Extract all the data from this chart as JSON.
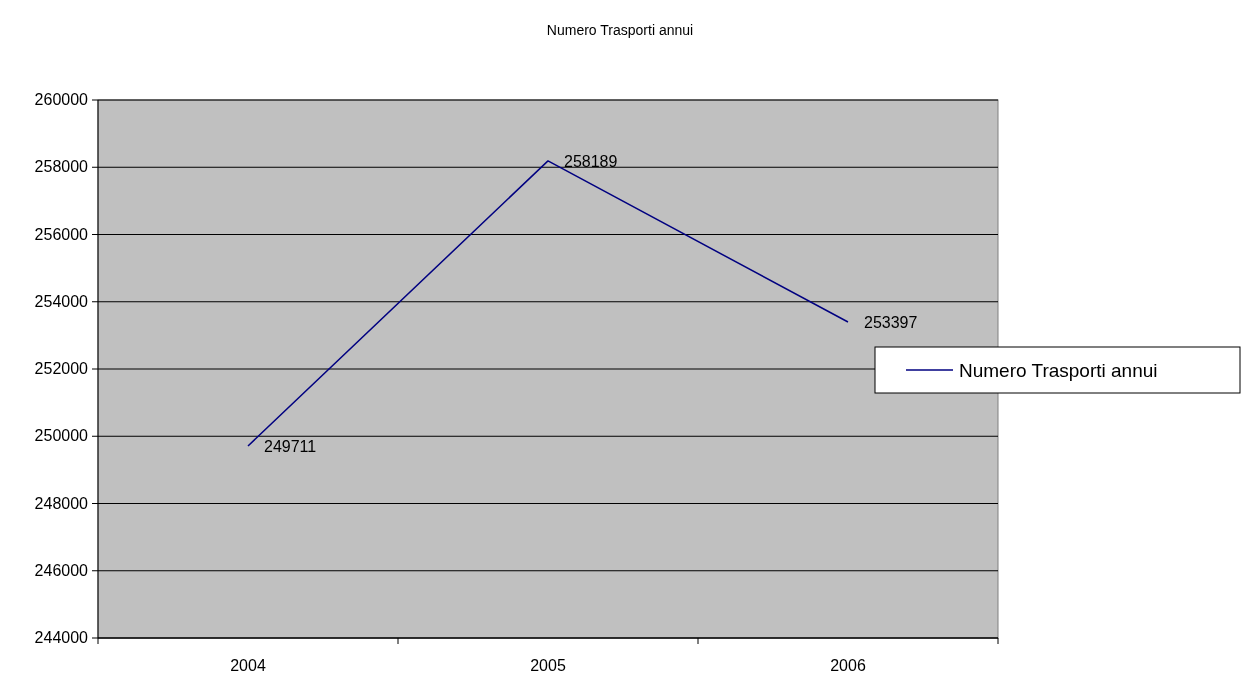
{
  "chart_data": {
    "type": "line",
    "title": "Numero Trasporti annui",
    "categories": [
      "2004",
      "2005",
      "2006"
    ],
    "series": [
      {
        "name": "Numero Trasporti annui",
        "color": "#000080",
        "values": [
          249711,
          258189,
          253397
        ]
      }
    ],
    "ylim": [
      244000,
      260000
    ],
    "yticks": [
      244000,
      246000,
      248000,
      250000,
      252000,
      254000,
      256000,
      258000,
      260000
    ],
    "grid": "y",
    "legend": "right",
    "data_labels": true,
    "marker": "none"
  }
}
